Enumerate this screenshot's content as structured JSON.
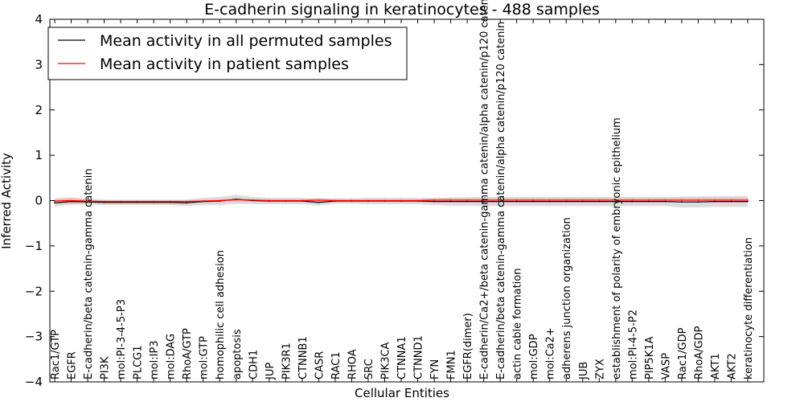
{
  "chart_data": {
    "type": "line",
    "title": "E-cadherin signaling in keratinocytes - 488 samples",
    "xlabel": "Cellular Entities",
    "ylabel": "Inferred Activity",
    "ylim": [
      -4,
      4
    ],
    "yticks": [
      -4,
      -3,
      -2,
      -1,
      0,
      1,
      2,
      3,
      4
    ],
    "ytick_labels": [
      "−4",
      "−3",
      "−2",
      "−1",
      "0",
      "1",
      "2",
      "3",
      "4"
    ],
    "grid": false,
    "legend_position": "top-left",
    "categories": [
      "Rac1/GTP",
      "EGFR",
      "E-cadherin/beta catenin-gamma catenin",
      "PI3K",
      "mol:PI-3-4-5-P3",
      "PLCG1",
      "mol:IP3",
      "mol:DAG",
      "RhoA/GTP",
      "mol:GTP",
      "homophilic cell adhesion",
      "apoptosis",
      "CDH1",
      "JUP",
      "PIK3R1",
      "CTNNB1",
      "CASR",
      "RAC1",
      "RHOA",
      "SRC",
      "PIK3CA",
      "CTNNA1",
      "CTNND1",
      "FYN",
      "FMN1",
      "EGFR(dimer)",
      "E-cadherin/Ca2+/beta catenin-gamma catenin/alpha catenin/p120 catenin",
      "E-cadherin/beta catenin-gamma catenin/alpha catenin/p120 catenin",
      "actin cable formation",
      "mol:GDP",
      "mol:Ca2+",
      "adherens junction organization",
      "JUB",
      "ZYX",
      "establishment of polarity of embryonic epithelium",
      "mol:PI-4-5-P2",
      "PIP5K1A",
      "VASP",
      "Rac1/GDP",
      "RhoA/GDP",
      "AKT1",
      "AKT2",
      "keratinocyte differentiation"
    ],
    "series": [
      {
        "name": "Mean activity in all permuted samples",
        "color": "#000000",
        "band_color": "#c0c0c0",
        "values": [
          -0.05,
          -0.02,
          -0.03,
          -0.04,
          -0.04,
          -0.04,
          -0.04,
          -0.04,
          -0.05,
          -0.02,
          -0.01,
          0.03,
          0.0,
          -0.01,
          -0.01,
          -0.01,
          -0.04,
          -0.01,
          -0.01,
          -0.01,
          -0.01,
          -0.01,
          -0.01,
          -0.02,
          -0.02,
          -0.02,
          -0.02,
          -0.02,
          -0.02,
          -0.02,
          -0.02,
          -0.02,
          -0.02,
          -0.02,
          -0.02,
          -0.02,
          -0.02,
          -0.02,
          -0.03,
          -0.03,
          -0.02,
          -0.02,
          -0.02
        ],
        "band": [
          0.08,
          0.07,
          0.06,
          0.06,
          0.06,
          0.06,
          0.06,
          0.06,
          0.07,
          0.08,
          0.09,
          0.1,
          0.08,
          0.07,
          0.07,
          0.07,
          0.07,
          0.06,
          0.06,
          0.07,
          0.07,
          0.07,
          0.07,
          0.08,
          0.09,
          0.09,
          0.1,
          0.1,
          0.1,
          0.1,
          0.1,
          0.1,
          0.1,
          0.1,
          0.1,
          0.1,
          0.1,
          0.1,
          0.12,
          0.12,
          0.12,
          0.12,
          0.12
        ]
      },
      {
        "name": "Mean activity in patient samples",
        "color": "#ff0000",
        "band_color": "#f4a0a0",
        "values": [
          -0.01,
          0.0,
          -0.01,
          -0.02,
          -0.02,
          -0.02,
          -0.02,
          -0.02,
          -0.02,
          -0.01,
          0.0,
          0.02,
          0.01,
          0.0,
          0.0,
          0.0,
          0.01,
          0.0,
          0.0,
          0.0,
          0.0,
          0.0,
          0.0,
          0.01,
          0.01,
          0.01,
          0.01,
          0.01,
          0.01,
          0.01,
          0.01,
          0.01,
          0.01,
          0.01,
          0.01,
          0.01,
          0.01,
          0.01,
          0.01,
          0.01,
          0.01,
          0.01,
          0.01
        ],
        "band": [
          0.06,
          0.07,
          0.04,
          0.03,
          0.03,
          0.03,
          0.03,
          0.03,
          0.03,
          0.03,
          0.03,
          0.03,
          0.03,
          0.03,
          0.03,
          0.03,
          0.05,
          0.03,
          0.03,
          0.03,
          0.03,
          0.03,
          0.03,
          0.04,
          0.04,
          0.04,
          0.04,
          0.04,
          0.04,
          0.04,
          0.04,
          0.04,
          0.04,
          0.04,
          0.04,
          0.04,
          0.04,
          0.04,
          0.05,
          0.05,
          0.05,
          0.05,
          0.05
        ]
      }
    ]
  }
}
